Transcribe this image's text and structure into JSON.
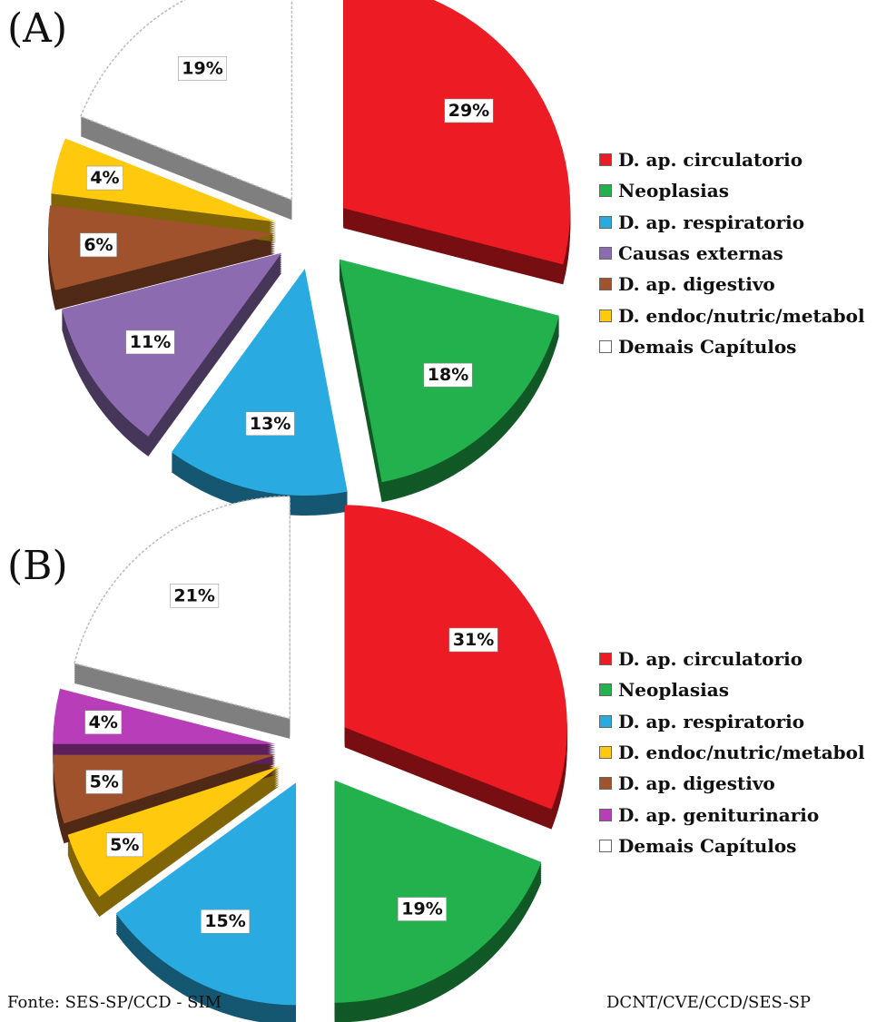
{
  "chart_data": [
    {
      "type": "pie",
      "panel_label": "(A)",
      "categories": [
        "D. ap. circulatorio",
        "Neoplasias",
        "D. ap. respiratorio",
        "Causas externas",
        "D. ap. digestivo",
        "D. endoc/nutric/metabol",
        "Demais Capítulos"
      ],
      "values": [
        29,
        18,
        13,
        11,
        6,
        4,
        19
      ],
      "value_labels": [
        "29%",
        "18%",
        "13%",
        "11%",
        "6%",
        "4%",
        "19%"
      ],
      "colors": [
        "#ed1c24",
        "#22b14c",
        "#29abe2",
        "#8c6bb1",
        "#a0522d",
        "#ffc90e",
        "#ffffff"
      ],
      "exploded": true,
      "three_d": true,
      "legend": "right"
    },
    {
      "type": "pie",
      "panel_label": "(B)",
      "categories": [
        "D. ap. circulatorio",
        "Neoplasias",
        "D. ap. respiratorio",
        "D. endoc/nutric/metabol",
        "D. ap. digestivo",
        "D. ap. geniturinario",
        "Demais Capítulos"
      ],
      "values": [
        31,
        19,
        15,
        5,
        5,
        4,
        21
      ],
      "value_labels": [
        "31%",
        "19%",
        "15%",
        "5%",
        "5%",
        "4%",
        "21%"
      ],
      "colors": [
        "#ed1c24",
        "#22b14c",
        "#29abe2",
        "#ffc90e",
        "#a0522d",
        "#b83db8",
        "#ffffff"
      ],
      "exploded": true,
      "three_d": true,
      "legend": "right"
    }
  ],
  "footer": {
    "source": "Fonte: SES-SP/CCD - SIM",
    "credit": "DCNT/CVE/CCD/SES-SP"
  }
}
